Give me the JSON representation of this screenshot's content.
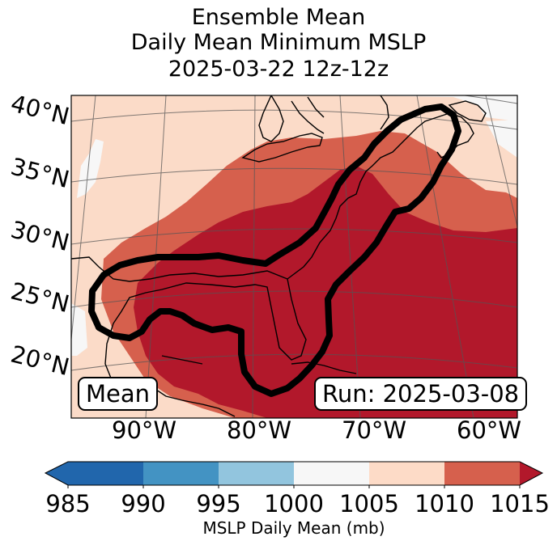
{
  "title": {
    "line1": "Ensemble Mean",
    "line2": "Daily Mean Minimum MSLP",
    "line3": "2025-03-22 12z-12z"
  },
  "map": {
    "lat_labels": [
      "40°N",
      "35°N",
      "30°N",
      "25°N",
      "20°N"
    ],
    "lon_labels": [
      "90°W",
      "80°W",
      "70°W",
      "60°W"
    ],
    "left_box": "Mean",
    "right_box": "Run: 2025-03-08",
    "colors": {
      "lt1000": "#f7f7f7",
      "b1005": "#fbdbc8",
      "b1010": "#d6604d",
      "b1015": "#b2182b",
      "contour": "#000000",
      "coast": "#000000"
    }
  },
  "colorbar": {
    "ticks": [
      "985",
      "990",
      "995",
      "1000",
      "1005",
      "1010",
      "1015"
    ],
    "label": "MSLP Daily Mean (mb)",
    "colors": [
      "#2166ac",
      "#4393c3",
      "#92c5de",
      "#d1e5f0",
      "#f7f7f7",
      "#fddbc7",
      "#d6604d",
      "#b2182b"
    ]
  }
}
